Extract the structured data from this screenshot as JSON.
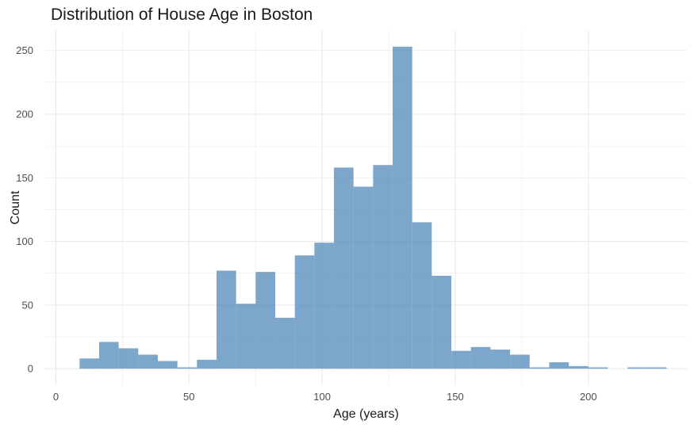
{
  "chart_data": {
    "type": "bar",
    "title": "Distribution of House Age in Boston",
    "xlabel": "Age (years)",
    "ylabel": "Count",
    "xlim": [
      -4,
      237
    ],
    "ylim": [
      -13,
      266
    ],
    "x_ticks": [
      0,
      50,
      100,
      150,
      200
    ],
    "y_ticks": [
      0,
      50,
      100,
      150,
      200,
      250
    ],
    "bin_width": 7.35,
    "bins": [
      {
        "start": 8.9,
        "count": 8
      },
      {
        "start": 16.25,
        "count": 21
      },
      {
        "start": 23.6,
        "count": 16
      },
      {
        "start": 30.95,
        "count": 11
      },
      {
        "start": 38.3,
        "count": 6
      },
      {
        "start": 45.65,
        "count": 1
      },
      {
        "start": 53.0,
        "count": 7
      },
      {
        "start": 60.35,
        "count": 77
      },
      {
        "start": 67.7,
        "count": 51
      },
      {
        "start": 75.05,
        "count": 76
      },
      {
        "start": 82.4,
        "count": 40
      },
      {
        "start": 89.75,
        "count": 89
      },
      {
        "start": 97.1,
        "count": 99
      },
      {
        "start": 104.45,
        "count": 158
      },
      {
        "start": 111.8,
        "count": 143
      },
      {
        "start": 119.15,
        "count": 160
      },
      {
        "start": 126.5,
        "count": 253
      },
      {
        "start": 133.85,
        "count": 115
      },
      {
        "start": 141.2,
        "count": 73
      },
      {
        "start": 148.55,
        "count": 14
      },
      {
        "start": 155.9,
        "count": 17
      },
      {
        "start": 163.25,
        "count": 15
      },
      {
        "start": 170.6,
        "count": 11
      },
      {
        "start": 177.95,
        "count": 1
      },
      {
        "start": 185.3,
        "count": 5
      },
      {
        "start": 192.65,
        "count": 2
      },
      {
        "start": 200.0,
        "count": 1
      },
      {
        "start": 207.35,
        "count": 0
      },
      {
        "start": 214.7,
        "count": 1
      },
      {
        "start": 222.05,
        "count": 1
      }
    ],
    "grid": true,
    "colors": {
      "bar": "#4682B4",
      "grid": "#EBEBEB",
      "background": "#FFFFFF"
    }
  }
}
